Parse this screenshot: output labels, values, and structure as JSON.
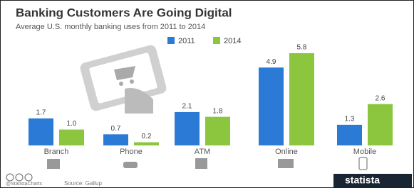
{
  "chart_data": {
    "type": "bar",
    "title": "Banking Customers Are Going Digital",
    "subtitle": "Average U.S. monthly banking uses from 2011 to 2014",
    "categories": [
      "Branch",
      "Phone",
      "ATM",
      "Online",
      "Mobile"
    ],
    "series": [
      {
        "name": "2011",
        "color": "#2b7bd6",
        "values": [
          1.7,
          0.7,
          2.1,
          4.9,
          1.3
        ],
        "value_labels": [
          "1.7",
          "0.7",
          "2.1",
          "4.9",
          "1.3"
        ]
      },
      {
        "name": "2014",
        "color": "#8cc63e",
        "values": [
          1.0,
          0.2,
          1.8,
          5.8,
          2.6
        ],
        "value_labels": [
          "1.0",
          "0.2",
          "1.8",
          "5.8",
          "2.6"
        ]
      }
    ],
    "handle": "@StatistaCharts",
    "source": "Source: Gallup",
    "brand": "statista"
  }
}
